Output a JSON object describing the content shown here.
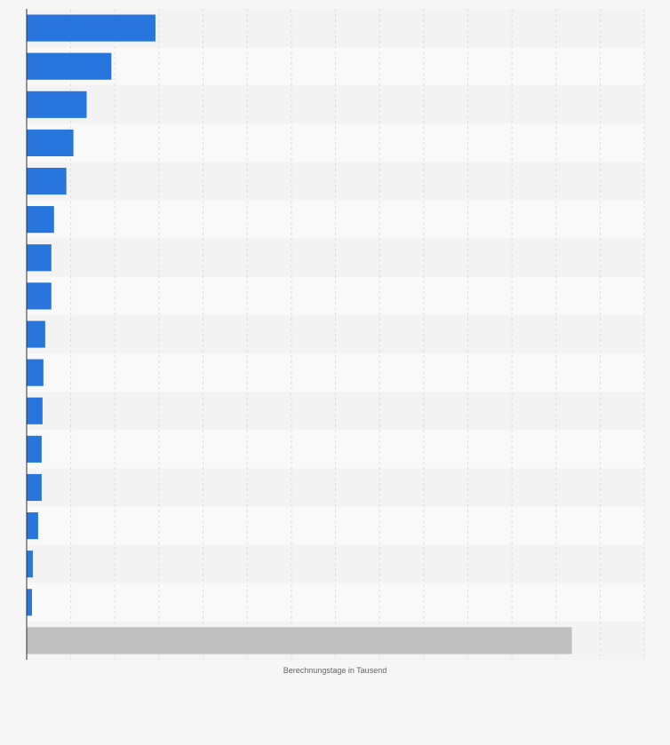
{
  "chart_data": {
    "type": "bar",
    "orientation": "horizontal",
    "xlabel": "Berechnungstage in Tausend",
    "xlim": [
      0,
      14
    ],
    "grid": true,
    "categories": [
      "",
      "",
      "",
      "",
      "",
      "",
      "",
      "",
      "",
      "",
      "",
      "",
      "",
      "",
      "",
      "",
      ""
    ],
    "values": [
      2.92,
      1.92,
      1.36,
      1.06,
      0.9,
      0.62,
      0.56,
      0.56,
      0.42,
      0.38,
      0.36,
      0.34,
      0.34,
      0.26,
      0.14,
      0.12,
      12.36
    ],
    "highlight_last": true,
    "colors": {
      "bar": "#2876dd",
      "total_bar": "#bfbfbf",
      "grid": "#dddddd",
      "axis": "#333333",
      "stripe_a": "#f3f3f3",
      "stripe_b": "#f9f9f9"
    }
  }
}
